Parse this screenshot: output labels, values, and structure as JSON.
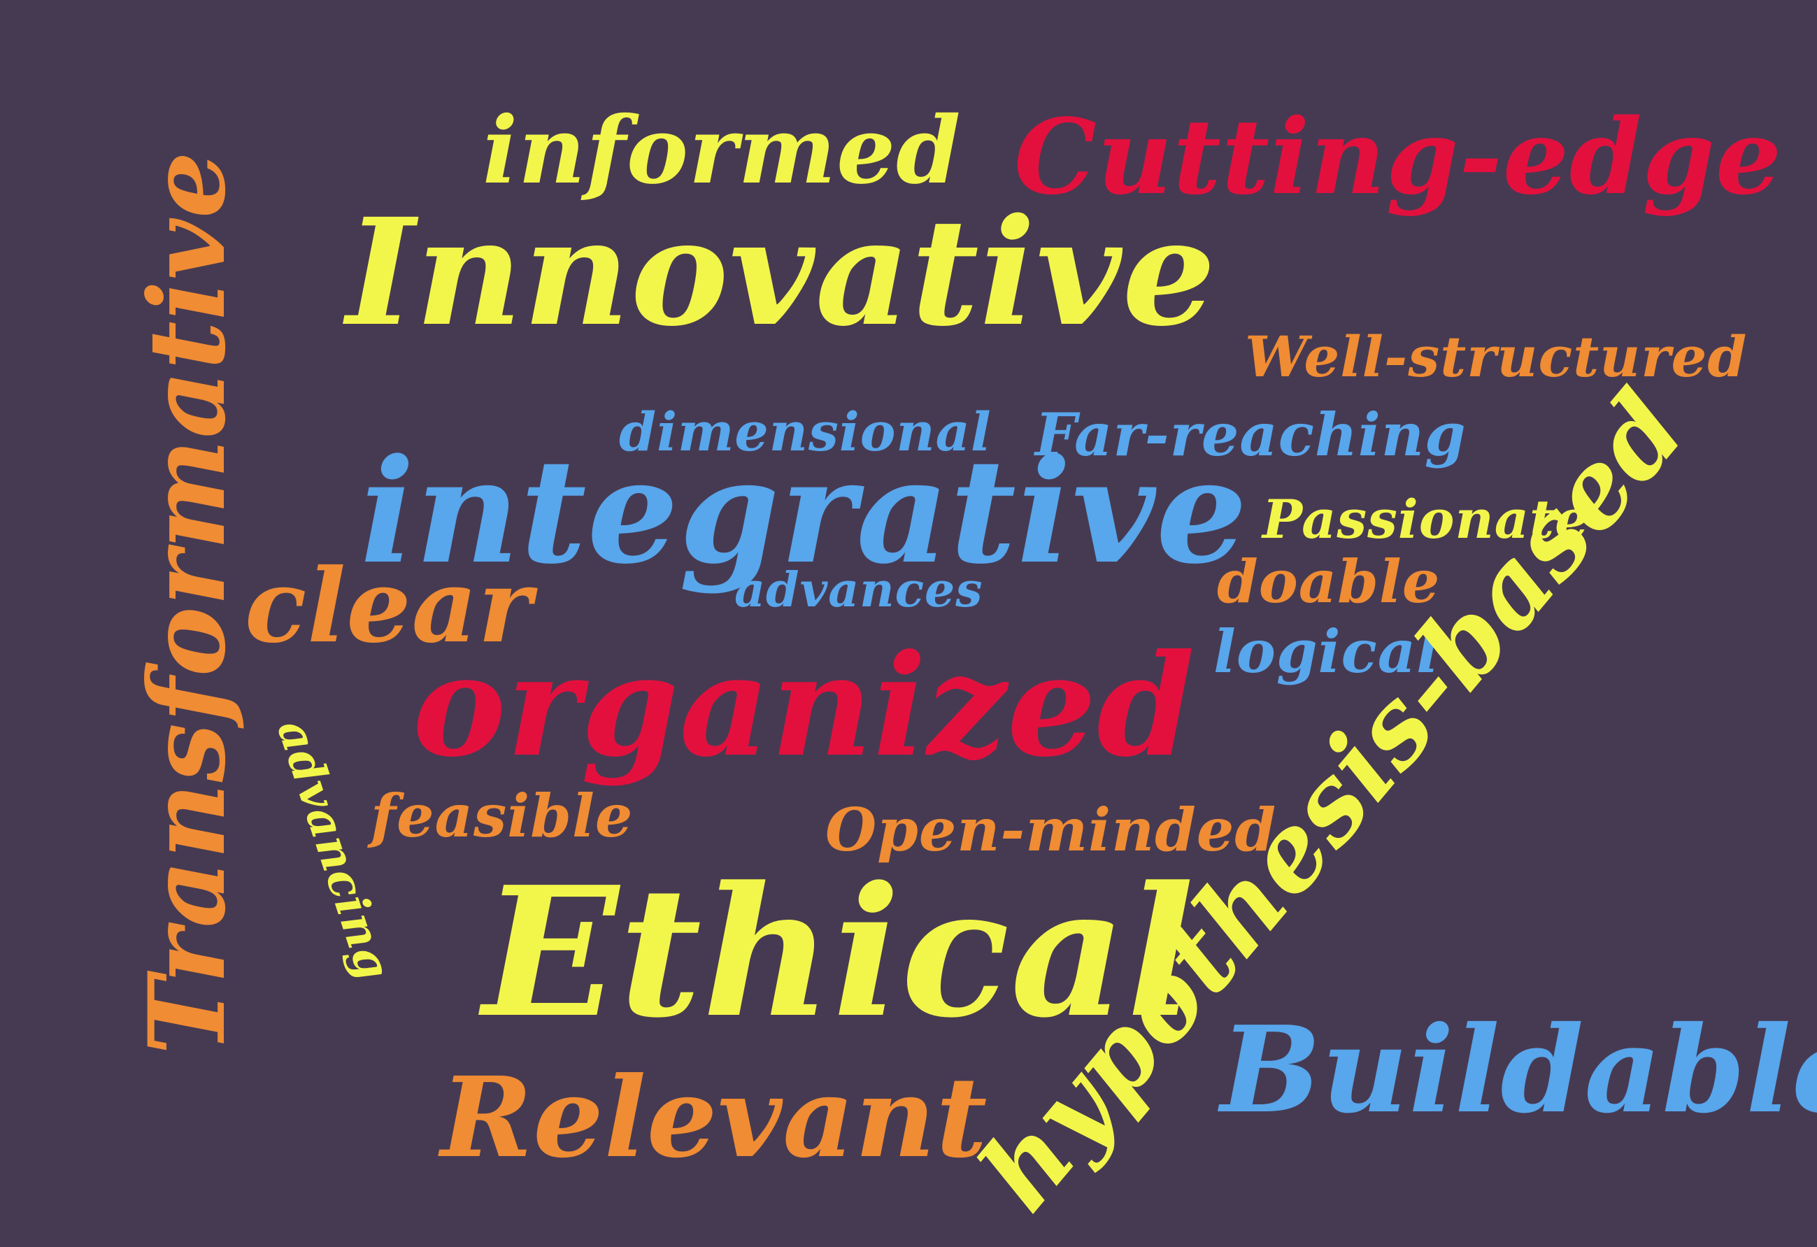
{
  "palette": {
    "background": "#463a52",
    "yellow": "#f3f64a",
    "red": "#e3103e",
    "orange": "#f08c33",
    "blue": "#58a6ec"
  },
  "words": {
    "informed": "informed",
    "cutting_edge": "Cutting-edge",
    "innovative": "Innovative",
    "well_structured": "Well-structured",
    "transformative": "Transformative",
    "dimensional": "dimensional",
    "far_reaching": "Far-reaching",
    "integrative": "integrative",
    "passionate": "Passionate",
    "clear": "clear",
    "advances": "advances",
    "doable": "doable",
    "logical": "logical",
    "hypothesis_based": "hypothesis-based",
    "organized": "organized",
    "advancing": "advancing",
    "feasible": "feasible",
    "open_minded": "Open-minded",
    "ethical": "Ethical",
    "buildable": "Buildable",
    "relevant": "Relevant"
  }
}
